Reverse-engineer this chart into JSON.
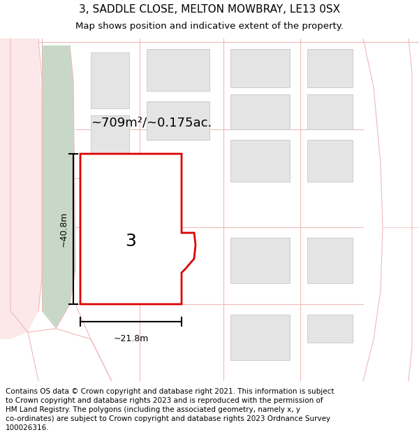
{
  "title": "3, SADDLE CLOSE, MELTON MOWBRAY, LE13 0SX",
  "subtitle": "Map shows position and indicative extent of the property.",
  "area_text": "~709m²/~0.175ac.",
  "width_label": "~21.8m",
  "height_label": "~40.8m",
  "number_label": "3",
  "footer_lines": [
    "Contains OS data © Crown copyright and database right 2021. This information is subject",
    "to Crown copyright and database rights 2023 and is reproduced with the permission of",
    "HM Land Registry. The polygons (including the associated geometry, namely x, y",
    "co-ordinates) are subject to Crown copyright and database rights 2023 Ordnance Survey",
    "100026316."
  ],
  "bg_color": "#ffffff",
  "road_color": "#f0b8b8",
  "green_color": "#c8d8c8",
  "highlight_color": "#dd0000",
  "building_fill": "#e4e4e4",
  "building_stroke": "#cccccc",
  "plot_fill": "#f0f0f0",
  "plot_stroke": "#d0d0d0",
  "title_fontsize": 11,
  "subtitle_fontsize": 9.5,
  "area_fontsize": 13,
  "label_fontsize": 9,
  "number_fontsize": 18,
  "footer_fontsize": 7.5
}
